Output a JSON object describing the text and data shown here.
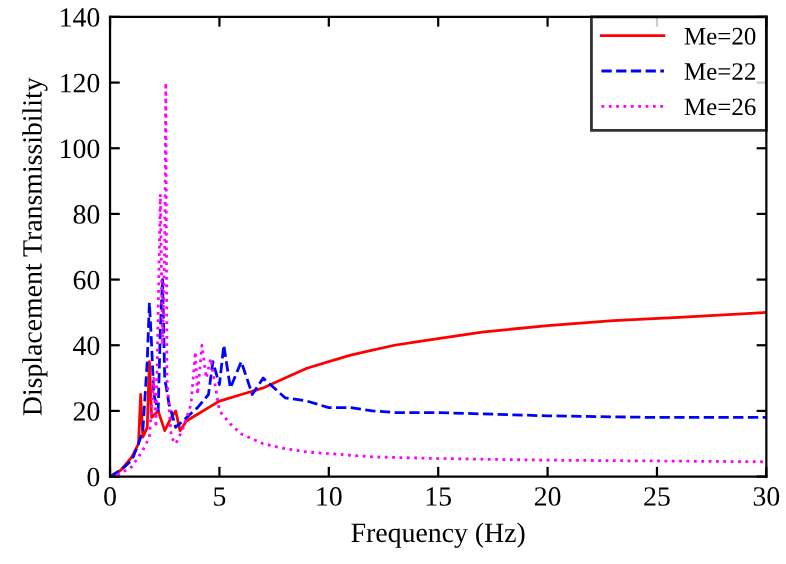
{
  "chart_data": {
    "type": "line",
    "xlabel": "Frequency (Hz)",
    "ylabel": "Displacement Transmissibility",
    "xlim": [
      0,
      30
    ],
    "xticks": [
      0,
      5,
      10,
      15,
      20,
      25,
      30
    ],
    "ylim": [
      0,
      140
    ],
    "yticks": [
      0,
      20,
      40,
      60,
      80,
      100,
      120,
      140
    ],
    "grid": false,
    "legend": "top right",
    "series": [
      {
        "name": "Me=20",
        "color": "#ff0000",
        "line_style": "solid",
        "x": [
          0,
          0.5,
          1,
          1.3,
          1.4,
          1.5,
          1.7,
          1.8,
          1.9,
          2.2,
          2.5,
          2.8,
          3,
          3.2,
          3.5,
          4,
          4.5,
          5,
          6,
          7,
          8,
          9,
          10,
          11,
          12,
          13,
          14,
          15,
          17,
          20,
          23,
          26,
          30
        ],
        "values": [
          0,
          2,
          6,
          10,
          25,
          12,
          15,
          35,
          18,
          20,
          14,
          18,
          20,
          14,
          17,
          19,
          21,
          23,
          25,
          27,
          30,
          33,
          35,
          37,
          38.5,
          40,
          41,
          42,
          44,
          46,
          47.5,
          48.5,
          50
        ]
      },
      {
        "name": "Me=22",
        "color": "#0000ff",
        "line_style": "dashed",
        "x": [
          0,
          0.5,
          1,
          1.3,
          1.5,
          1.7,
          1.8,
          1.9,
          2.0,
          2.2,
          2.3,
          2.4,
          2.5,
          2.7,
          3,
          3.5,
          4,
          4.5,
          4.7,
          5,
          5.2,
          5.5,
          6,
          6.5,
          7,
          8,
          9,
          10,
          11,
          12,
          13,
          15,
          20,
          25,
          30
        ],
        "values": [
          0,
          2,
          5,
          10,
          14,
          35,
          53,
          40,
          25,
          20,
          45,
          60,
          30,
          22,
          15,
          18,
          21,
          25,
          35,
          28,
          40,
          27,
          35,
          25,
          30,
          24,
          23,
          21,
          21,
          20,
          19.5,
          19.5,
          18.5,
          18,
          18
        ]
      },
      {
        "name": "Me=26",
        "color": "#ff00ff",
        "line_style": "dotted",
        "x": [
          0,
          0.5,
          1,
          1.5,
          1.8,
          2.0,
          2.1,
          2.2,
          2.3,
          2.4,
          2.5,
          2.55,
          2.6,
          2.8,
          3,
          3.3,
          3.7,
          3.9,
          4.0,
          4.2,
          4.4,
          4.6,
          5,
          5.5,
          6,
          7,
          8,
          9,
          10,
          12,
          15,
          20,
          30
        ],
        "values": [
          0,
          1,
          3,
          8,
          12,
          30,
          15,
          50,
          86,
          40,
          70,
          120,
          30,
          12,
          10,
          14,
          22,
          38,
          25,
          40,
          30,
          36,
          20,
          16,
          13,
          10,
          8.5,
          7.5,
          7,
          6,
          5.5,
          5,
          4.5
        ]
      }
    ]
  }
}
